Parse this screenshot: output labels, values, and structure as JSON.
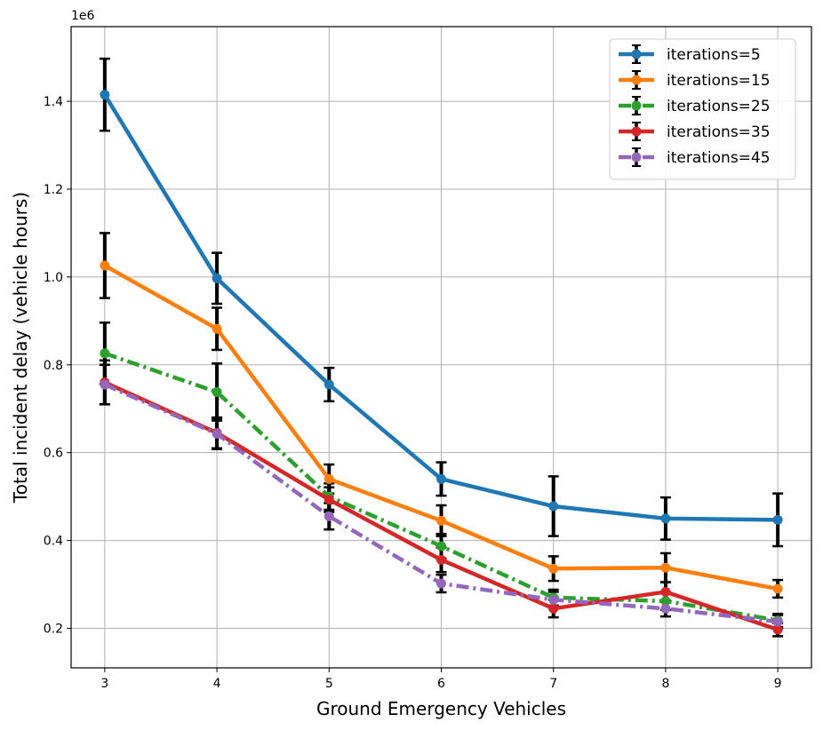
{
  "chart_data": {
    "type": "line",
    "title": "",
    "xlabel": "Ground Emergency Vehicles",
    "ylabel": "Total incident delay (vehicle hours)",
    "y_offset_text": "1e6",
    "x": [
      3,
      4,
      5,
      6,
      7,
      8,
      9
    ],
    "xlim": [
      2.7,
      9.3
    ],
    "ylim": [
      0.11,
      1.57
    ],
    "x_ticks": [
      "3",
      "4",
      "5",
      "6",
      "7",
      "8",
      "9"
    ],
    "y_ticks": [
      "0.2",
      "0.4",
      "0.6",
      "0.8",
      "1.0",
      "1.2",
      "1.4"
    ],
    "y_tick_values": [
      0.2,
      0.4,
      0.6,
      0.8,
      1.0,
      1.2,
      1.4
    ],
    "grid": true,
    "legend_position": "top-right",
    "series": [
      {
        "name": "iterations=5",
        "color": "#1f77b4",
        "linestyle": "solid",
        "values": [
          1.415,
          0.997,
          0.755,
          0.54,
          0.478,
          0.45,
          0.447
        ],
        "errors": [
          0.082,
          0.058,
          0.038,
          0.038,
          0.068,
          0.048,
          0.06
        ]
      },
      {
        "name": "iterations=15",
        "color": "#ff7f0e",
        "linestyle": "solid",
        "values": [
          1.026,
          0.882,
          0.54,
          0.445,
          0.336,
          0.338,
          0.29
        ],
        "errors": [
          0.074,
          0.048,
          0.033,
          0.035,
          0.028,
          0.033,
          0.02
        ]
      },
      {
        "name": "iterations=25",
        "color": "#2ca02c",
        "linestyle": "dashdot",
        "values": [
          0.826,
          0.738,
          0.5,
          0.387,
          0.27,
          0.262,
          0.218
        ],
        "errors": [
          0.07,
          0.065,
          0.03,
          0.028,
          0.018,
          0.02,
          0.015
        ]
      },
      {
        "name": "iterations=35",
        "color": "#d62728",
        "linestyle": "solid",
        "values": [
          0.76,
          0.645,
          0.493,
          0.356,
          0.245,
          0.283,
          0.197
        ],
        "errors": [
          0.05,
          0.035,
          0.028,
          0.028,
          0.02,
          0.022,
          0.015
        ]
      },
      {
        "name": "iterations=45",
        "color": "#9467bd",
        "linestyle": "dashdot",
        "values": [
          0.755,
          0.643,
          0.455,
          0.302,
          0.265,
          0.245,
          0.215
        ],
        "errors": [
          0.045,
          0.035,
          0.03,
          0.02,
          0.018,
          0.018,
          0.015
        ]
      }
    ]
  }
}
